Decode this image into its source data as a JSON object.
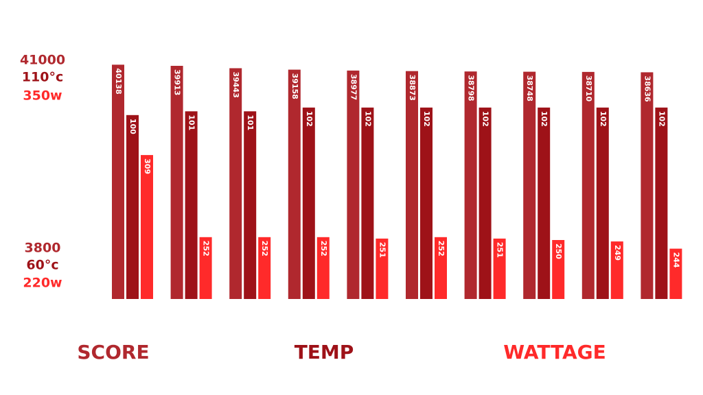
{
  "chart_data": {
    "type": "bar",
    "categories": [
      null,
      null,
      null,
      null,
      null,
      null,
      null,
      null,
      null,
      null
    ],
    "series": [
      {
        "name": "SCORE",
        "color": "#b0282e",
        "values": [
          40138,
          39913,
          39443,
          39158,
          38977,
          38873,
          38798,
          38748,
          38710,
          38636
        ],
        "ylim": [
          3800,
          41000
        ],
        "yticks": [
          41000,
          3800
        ]
      },
      {
        "name": "TEMP",
        "color": "#9e1218",
        "values": [
          100,
          101,
          101,
          102,
          102,
          102,
          102,
          102,
          102,
          102
        ],
        "ylim": [
          60,
          110
        ],
        "yticks": [
          {
            "value": 110,
            "label": "110°c"
          },
          {
            "value": 60,
            "label": "60°c"
          }
        ]
      },
      {
        "name": "WATTAGE",
        "color": "#ff2a2a",
        "values": [
          309,
          252,
          252,
          252,
          251,
          252,
          251,
          250,
          249,
          244
        ],
        "ylim": [
          220,
          350
        ],
        "yticks": [
          {
            "value": 350,
            "label": "350w"
          },
          {
            "value": 220,
            "label": "220w"
          }
        ]
      }
    ]
  }
}
